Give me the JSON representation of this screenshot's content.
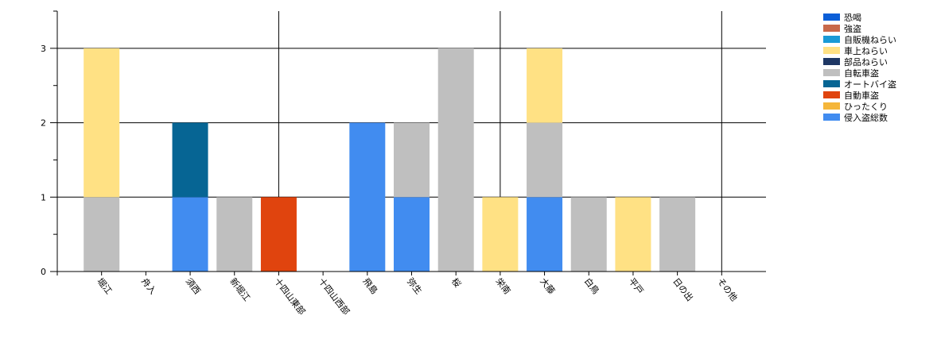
{
  "chart_data": {
    "type": "bar",
    "stacked": true,
    "categories": [
      "堀江",
      "舟入",
      "須西",
      "新堀江",
      "十四山東部",
      "十四山西部",
      "飛島",
      "弥生",
      "桜",
      "栄南",
      "大藤",
      "白鳥",
      "平戸",
      "日の出",
      "その他"
    ],
    "series": [
      {
        "name": "恐喝",
        "color": "#0b5ed7",
        "values": [
          0,
          0,
          0,
          0,
          0,
          0,
          0,
          0,
          0,
          0,
          0,
          0,
          0,
          0,
          0
        ]
      },
      {
        "name": "強盗",
        "color": "#c8694a",
        "values": [
          0,
          0,
          0,
          0,
          0,
          0,
          0,
          0,
          0,
          0,
          0,
          0,
          0,
          0,
          0
        ]
      },
      {
        "name": "自販機ねらい",
        "color": "#1a9ad6",
        "values": [
          0,
          0,
          0,
          0,
          0,
          0,
          0,
          0,
          0,
          0,
          0,
          0,
          0,
          0,
          0
        ]
      },
      {
        "name": "車上ねらい",
        "color": "#ffe184",
        "values": [
          2,
          0,
          0,
          0,
          0,
          0,
          0,
          0,
          0,
          1,
          1,
          0,
          1,
          0,
          0
        ]
      },
      {
        "name": "部品ねらい",
        "color": "#1e3764",
        "values": [
          0,
          0,
          0,
          0,
          0,
          0,
          0,
          0,
          0,
          0,
          0,
          0,
          0,
          0,
          0
        ]
      },
      {
        "name": "自転車盗",
        "color": "#bfbfbf",
        "values": [
          1,
          0,
          0,
          1,
          0,
          0,
          0,
          1,
          3,
          0,
          1,
          1,
          0,
          1,
          0
        ]
      },
      {
        "name": "オートバイ盗",
        "color": "#066594",
        "values": [
          0,
          0,
          1,
          0,
          0,
          0,
          0,
          0,
          0,
          0,
          0,
          0,
          0,
          0,
          0
        ]
      },
      {
        "name": "自動車盗",
        "color": "#e0440e",
        "values": [
          0,
          0,
          0,
          0,
          1,
          0,
          0,
          0,
          0,
          0,
          0,
          0,
          0,
          0,
          0
        ]
      },
      {
        "name": "ひったくり",
        "color": "#f5b63a",
        "values": [
          0,
          0,
          0,
          0,
          0,
          0,
          0,
          0,
          0,
          0,
          0,
          0,
          0,
          0,
          0
        ]
      },
      {
        "name": "侵入盗総数",
        "color": "#418cf0",
        "values": [
          0,
          0,
          1,
          0,
          0,
          0,
          2,
          1,
          0,
          0,
          1,
          0,
          0,
          0,
          0
        ]
      }
    ],
    "stack_order": [
      9,
      5,
      6,
      7,
      3
    ],
    "y_ticks": [
      "0",
      "1",
      "2",
      "3"
    ],
    "ylim": [
      0,
      3.5
    ],
    "title": "",
    "xlabel": "",
    "ylabel": "",
    "grid": true,
    "legend_position": "top-right"
  }
}
